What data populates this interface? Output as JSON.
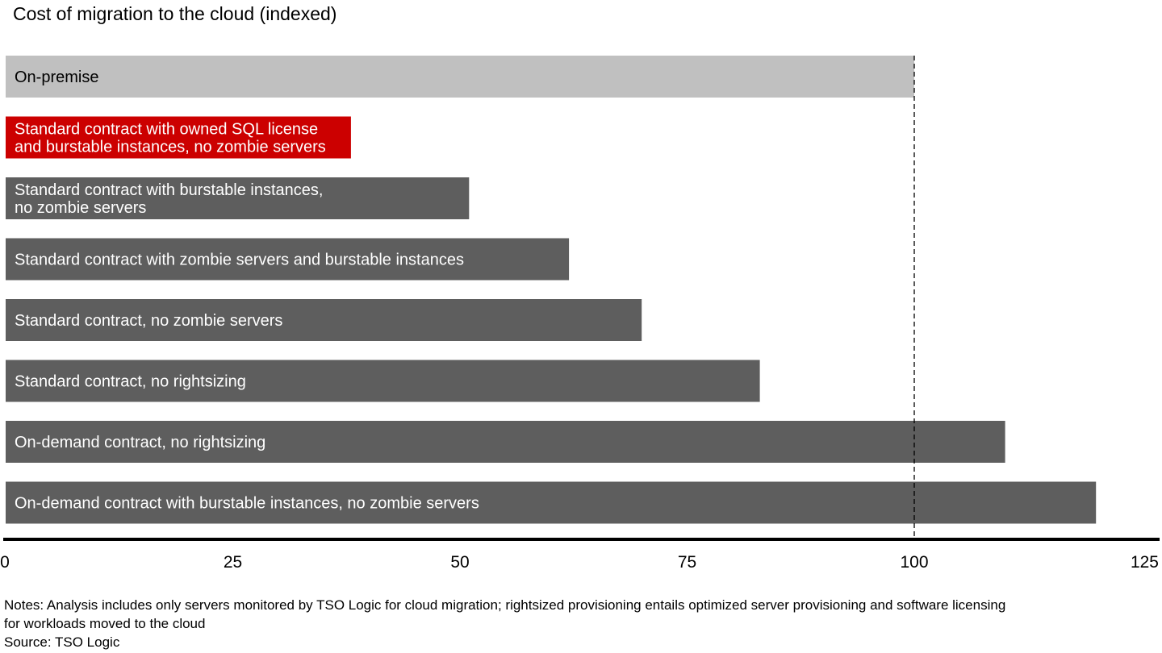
{
  "chart_data": {
    "type": "bar",
    "orientation": "horizontal",
    "title": "Cost of migration to the cloud (indexed)",
    "categories": [
      [
        "On-premise"
      ],
      [
        "Standard contract with owned SQL license",
        "and burstable instances, no zombie servers"
      ],
      [
        "Standard contract with burstable instances,",
        "no zombie servers"
      ],
      [
        "Standard contract with zombie servers and burstable instances"
      ],
      [
        "Standard contract, no zombie servers"
      ],
      [
        "Standard contract, no rightsizing"
      ],
      [
        "On-demand contract, no rightsizing"
      ],
      [
        "On-demand contract with burstable instances, no zombie servers"
      ]
    ],
    "values": [
      100,
      38,
      51,
      62,
      70,
      83,
      110,
      120
    ],
    "bar_colors": [
      "#c0c0c0",
      "#cc0000",
      "#5e5e5e",
      "#5e5e5e",
      "#5e5e5e",
      "#5e5e5e",
      "#5e5e5e",
      "#5e5e5e"
    ],
    "label_colors": [
      "#000000",
      "#ffffff",
      "#ffffff",
      "#ffffff",
      "#ffffff",
      "#ffffff",
      "#ffffff",
      "#ffffff"
    ],
    "xlim": [
      0,
      125
    ],
    "xticks": [
      0,
      25,
      50,
      75,
      100,
      125
    ],
    "reference_line": {
      "value": 100,
      "style": "dashed"
    },
    "grid": false,
    "xlabel": "",
    "ylabel": ""
  },
  "notes": {
    "line1": "Notes: Analysis includes only servers monitored by TSO Logic for cloud migration; rightsized provisioning entails optimized server provisioning and software licensing",
    "line2": "for workloads moved to the cloud",
    "source": "Source: TSO Logic"
  }
}
